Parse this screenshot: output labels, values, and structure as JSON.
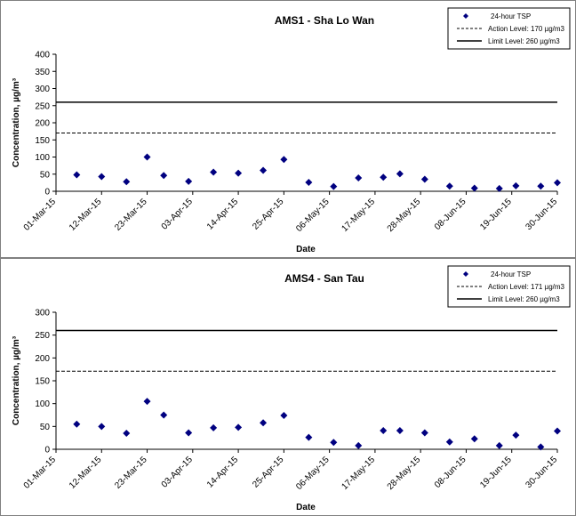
{
  "chart_data": [
    {
      "type": "scatter",
      "title": "AMS1 - Sha Lo Wan",
      "xlabel": "Date",
      "ylabel": "Concentration, µg/m³",
      "ylim": [
        0,
        400
      ],
      "yticks": [
        0,
        50,
        100,
        150,
        200,
        250,
        300,
        350,
        400
      ],
      "xlim": [
        "2015-03-01",
        "2015-06-30"
      ],
      "xticks": [
        "01-Mar-15",
        "12-Mar-15",
        "23-Mar-15",
        "03-Apr-15",
        "14-Apr-15",
        "25-Apr-15",
        "06-May-15",
        "17-May-15",
        "28-May-15",
        "08-Jun-15",
        "19-Jun-15",
        "30-Jun-15"
      ],
      "grid": false,
      "legend_position": "top-right",
      "series": [
        {
          "name": "24-hour TSP",
          "marker": "diamond",
          "color": "#000080",
          "points": [
            {
              "x": "2015-03-06",
              "y": 48
            },
            {
              "x": "2015-03-12",
              "y": 43
            },
            {
              "x": "2015-03-18",
              "y": 28
            },
            {
              "x": "2015-03-23",
              "y": 100
            },
            {
              "x": "2015-03-27",
              "y": 46
            },
            {
              "x": "2015-04-02",
              "y": 29
            },
            {
              "x": "2015-04-08",
              "y": 56
            },
            {
              "x": "2015-04-14",
              "y": 53
            },
            {
              "x": "2015-04-20",
              "y": 61
            },
            {
              "x": "2015-04-25",
              "y": 93
            },
            {
              "x": "2015-05-01",
              "y": 26
            },
            {
              "x": "2015-05-07",
              "y": 14
            },
            {
              "x": "2015-05-13",
              "y": 39
            },
            {
              "x": "2015-05-19",
              "y": 41
            },
            {
              "x": "2015-05-23",
              "y": 51
            },
            {
              "x": "2015-05-29",
              "y": 35
            },
            {
              "x": "2015-06-04",
              "y": 15
            },
            {
              "x": "2015-06-10",
              "y": 9
            },
            {
              "x": "2015-06-16",
              "y": 8
            },
            {
              "x": "2015-06-20",
              "y": 16
            },
            {
              "x": "2015-06-26",
              "y": 15
            },
            {
              "x": "2015-06-30",
              "y": 25
            }
          ]
        },
        {
          "name": "Action Level: 170 µg/m3",
          "style": "dashed",
          "y": 170
        },
        {
          "name": "Limit Level: 260 µg/m3",
          "style": "solid",
          "y": 260
        }
      ]
    },
    {
      "type": "scatter",
      "title": "AMS4 - San Tau",
      "xlabel": "Date",
      "ylabel": "Concentration, µg/m³",
      "ylim": [
        0,
        300
      ],
      "yticks": [
        0,
        50,
        100,
        150,
        200,
        250,
        300
      ],
      "xlim": [
        "2015-03-01",
        "2015-06-30"
      ],
      "xticks": [
        "01-Mar-15",
        "12-Mar-15",
        "23-Mar-15",
        "03-Apr-15",
        "14-Apr-15",
        "25-Apr-15",
        "06-May-15",
        "17-May-15",
        "28-May-15",
        "08-Jun-15",
        "19-Jun-15",
        "30-Jun-15"
      ],
      "grid": false,
      "legend_position": "top-right",
      "series": [
        {
          "name": "24-hour TSP",
          "marker": "diamond",
          "color": "#000080",
          "points": [
            {
              "x": "2015-03-06",
              "y": 55
            },
            {
              "x": "2015-03-12",
              "y": 50
            },
            {
              "x": "2015-03-18",
              "y": 35
            },
            {
              "x": "2015-03-23",
              "y": 105
            },
            {
              "x": "2015-03-27",
              "y": 75
            },
            {
              "x": "2015-04-02",
              "y": 36
            },
            {
              "x": "2015-04-08",
              "y": 47
            },
            {
              "x": "2015-04-14",
              "y": 48
            },
            {
              "x": "2015-04-20",
              "y": 58
            },
            {
              "x": "2015-04-25",
              "y": 74
            },
            {
              "x": "2015-05-01",
              "y": 26
            },
            {
              "x": "2015-05-07",
              "y": 15
            },
            {
              "x": "2015-05-13",
              "y": 8
            },
            {
              "x": "2015-05-19",
              "y": 41
            },
            {
              "x": "2015-05-23",
              "y": 41
            },
            {
              "x": "2015-05-29",
              "y": 36
            },
            {
              "x": "2015-06-04",
              "y": 16
            },
            {
              "x": "2015-06-10",
              "y": 23
            },
            {
              "x": "2015-06-16",
              "y": 8
            },
            {
              "x": "2015-06-20",
              "y": 31
            },
            {
              "x": "2015-06-26",
              "y": 5
            },
            {
              "x": "2015-06-30",
              "y": 40
            }
          ]
        },
        {
          "name": "Action Level: 171 µg/m3",
          "style": "dashed",
          "y": 171
        },
        {
          "name": "Limit Level: 260 µg/m3",
          "style": "solid",
          "y": 260
        }
      ]
    }
  ]
}
